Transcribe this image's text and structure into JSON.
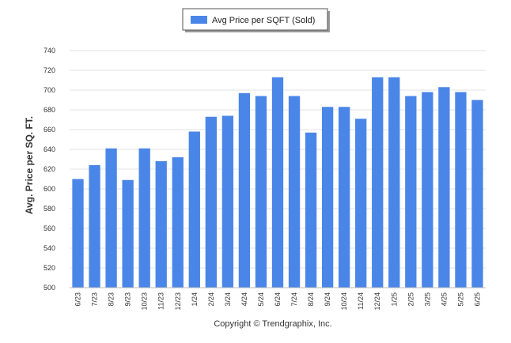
{
  "chart_data": {
    "type": "bar",
    "categories": [
      "6/23",
      "7/23",
      "8/23",
      "9/23",
      "10/23",
      "11/23",
      "12/23",
      "1/24",
      "2/24",
      "3/24",
      "4/24",
      "5/24",
      "6/24",
      "7/24",
      "8/24",
      "9/24",
      "10/24",
      "11/24",
      "12/24",
      "1/25",
      "2/25",
      "3/25",
      "4/25",
      "5/25",
      "6/25"
    ],
    "series": [
      {
        "name": "Avg Price per SQFT (Sold)",
        "values": [
          610,
          624,
          641,
          609,
          641,
          628,
          632,
          658,
          673,
          674,
          697,
          694,
          713,
          694,
          657,
          683,
          683,
          671,
          713,
          713,
          694,
          698,
          703,
          698,
          690
        ]
      }
    ],
    "ylabel": "Avg. Price per SQ. FT.",
    "xlabel": "",
    "ylim": [
      500,
      740
    ],
    "yticks": [
      500,
      520,
      540,
      560,
      580,
      600,
      620,
      640,
      660,
      680,
      700,
      720,
      740
    ],
    "grid": true,
    "legend": "top-center",
    "color": "#4a86e8",
    "footer": "Copyright © Trendgraphix, Inc."
  }
}
